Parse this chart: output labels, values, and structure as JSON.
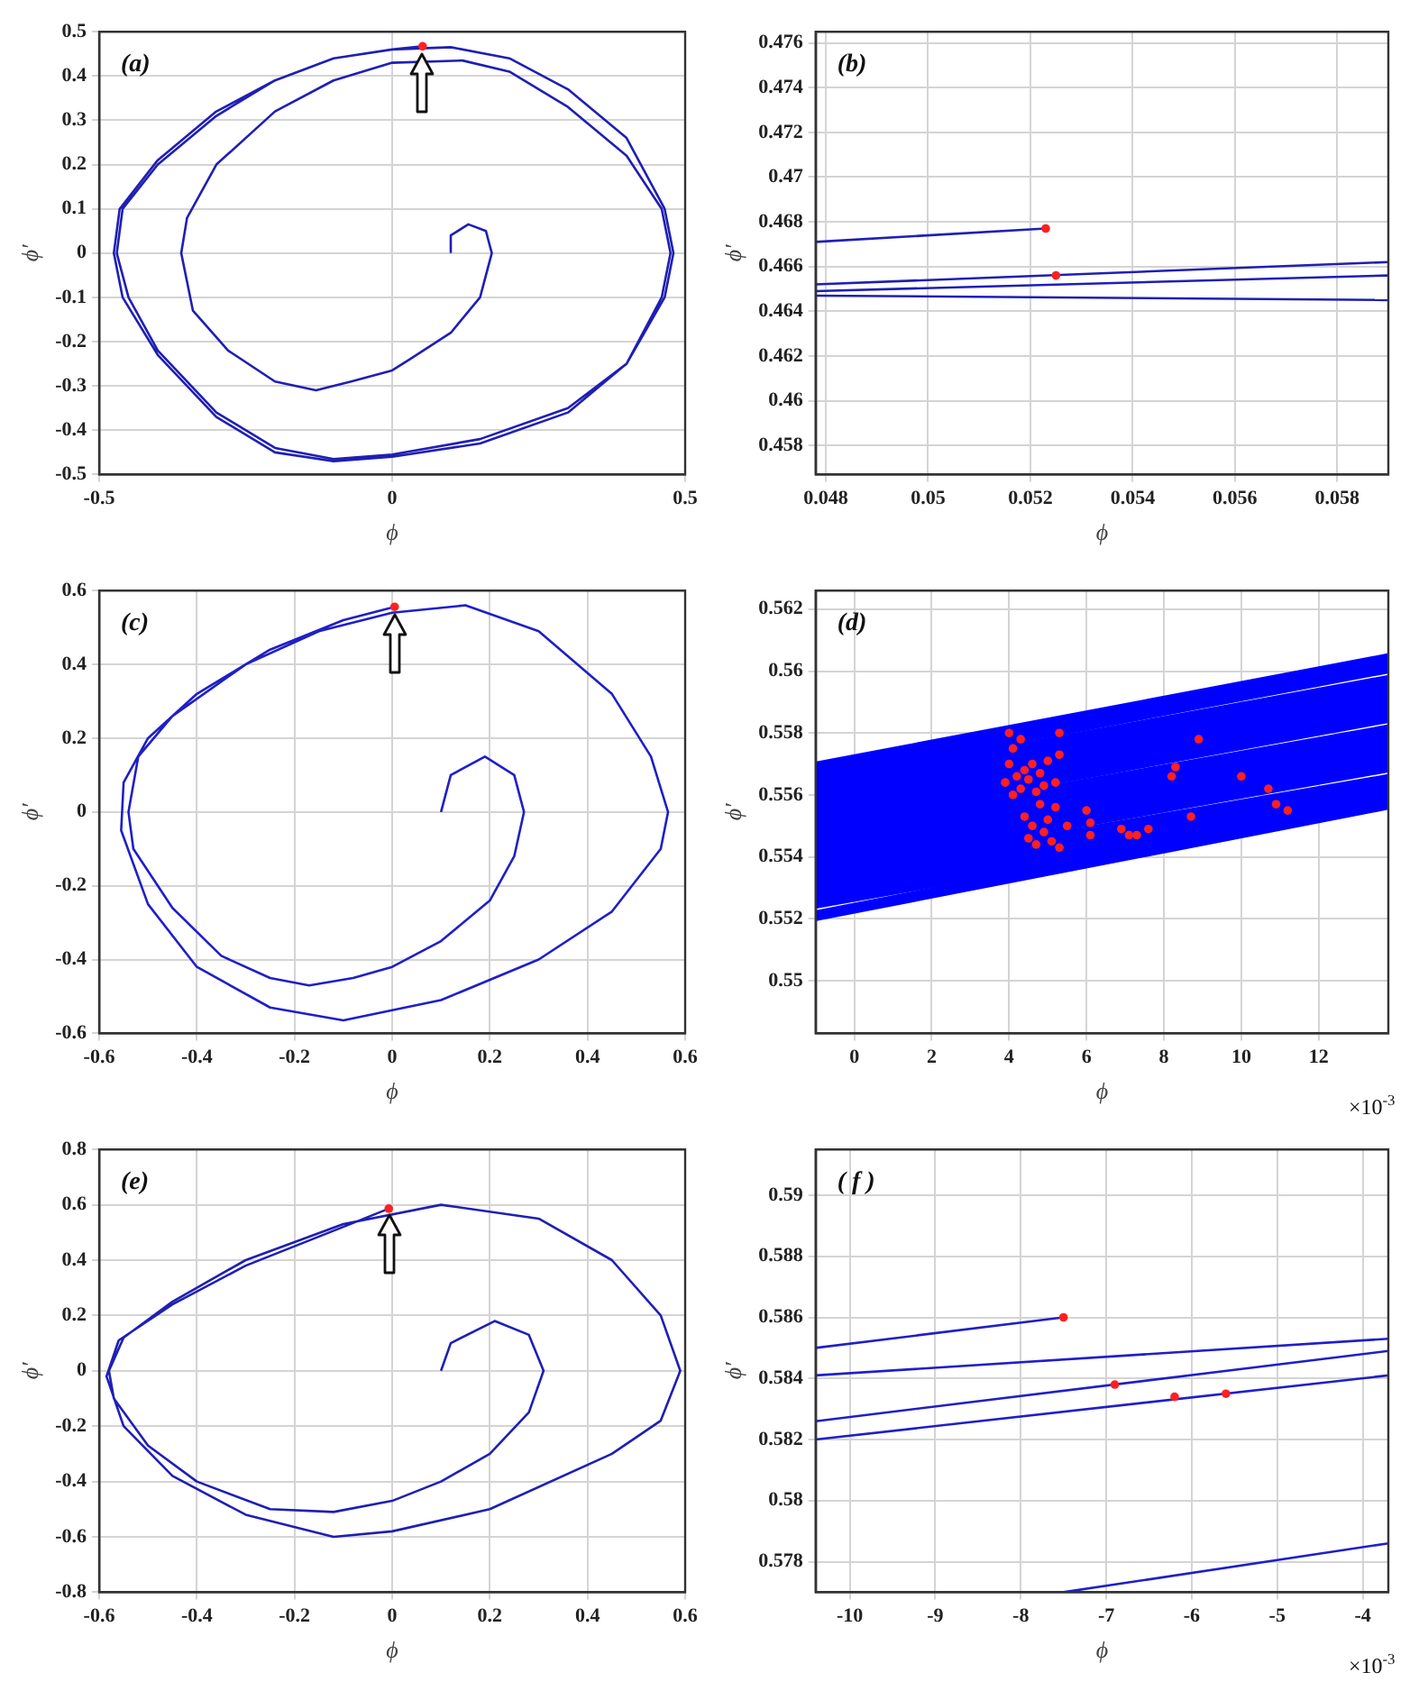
{
  "chart_data": [
    {
      "type": "line",
      "xlabel": "ϕ",
      "ylabel": "ϕ′",
      "annotations": [
        "(a)"
      ],
      "xlim": [
        -0.5,
        0.5
      ],
      "xticks": [
        -0.5,
        0,
        0.5
      ],
      "ylim": [
        -0.5,
        0.5
      ],
      "yticks": [
        -0.5,
        -0.4,
        -0.3,
        -0.2,
        -0.1,
        0,
        0.1,
        0.2,
        0.3,
        0.4,
        0.5
      ],
      "grid": true,
      "series": [
        {
          "type": "line",
          "color": "#1f1fb4",
          "x": [
            0.1,
            0.1,
            0.13,
            0.16,
            0.17,
            0.15,
            0.1,
            0.03,
            0,
            -0.07,
            -0.13,
            -0.2,
            -0.28,
            -0.34,
            -0.36,
            -0.35,
            -0.3,
            -0.2,
            -0.1,
            0,
            0.12,
            0.2,
            0.3,
            0.4,
            0.46,
            0.475,
            0.46,
            0.4,
            0.3,
            0.15,
            0,
            -0.1,
            -0.2,
            -0.3,
            -0.4,
            -0.45,
            -0.47,
            -0.46,
            -0.4,
            -0.3,
            -0.2,
            -0.1,
            0,
            0.1,
            0.2,
            0.3,
            0.4,
            0.465,
            0.48,
            0.465,
            0.4,
            0.3,
            0.15,
            0,
            -0.1,
            -0.2,
            -0.3,
            -0.4,
            -0.46,
            -0.475,
            -0.465,
            -0.4,
            -0.3,
            -0.2,
            -0.1,
            0,
            0.052
          ],
          "values": [
            0,
            0.04,
            0.065,
            0.05,
            0,
            -0.1,
            -0.18,
            -0.24,
            -0.265,
            -0.29,
            -0.31,
            -0.29,
            -0.22,
            -0.13,
            0,
            0.08,
            0.2,
            0.32,
            0.39,
            0.43,
            0.435,
            0.41,
            0.33,
            0.22,
            0.1,
            0,
            -0.1,
            -0.25,
            -0.35,
            -0.42,
            -0.455,
            -0.465,
            -0.44,
            -0.36,
            -0.22,
            -0.1,
            0,
            0.1,
            0.2,
            0.31,
            0.39,
            0.44,
            0.46,
            0.465,
            0.44,
            0.37,
            0.26,
            0.1,
            0,
            -0.1,
            -0.25,
            -0.36,
            -0.43,
            -0.46,
            -0.47,
            -0.45,
            -0.37,
            -0.23,
            -0.1,
            0,
            0.1,
            0.21,
            0.32,
            0.39,
            0.44,
            0.46,
            0.467
          ]
        },
        {
          "type": "scatter",
          "color": "#ff2020",
          "marker": "circle",
          "x": [
            0.052
          ],
          "values": [
            0.467
          ]
        }
      ]
    },
    {
      "type": "line",
      "xlabel": "ϕ",
      "ylabel": "ϕ′",
      "annotations": [
        "(b)"
      ],
      "xlim": [
        0.0478,
        0.059
      ],
      "xticks": [
        0.048,
        0.05,
        0.052,
        0.054,
        0.056,
        0.058
      ],
      "ylim": [
        0.4567,
        0.4765
      ],
      "yticks": [
        0.458,
        0.46,
        0.462,
        0.464,
        0.466,
        0.468,
        0.47,
        0.472,
        0.474,
        0.476
      ],
      "grid": true,
      "series": [
        {
          "type": "line",
          "color": "#1f1fb4",
          "x": [
            0.0478,
            0.0523
          ],
          "values": [
            0.4671,
            0.4677
          ]
        },
        {
          "type": "line",
          "color": "#1f1fb4",
          "x": [
            0.0478,
            0.059
          ],
          "values": [
            0.4652,
            0.4662
          ]
        },
        {
          "type": "line",
          "color": "#1f1fb4",
          "x": [
            0.0478,
            0.059
          ],
          "values": [
            0.4649,
            0.4656
          ]
        },
        {
          "type": "line",
          "color": "#1f1fb4",
          "x": [
            0.0478,
            0.059
          ],
          "values": [
            0.4647,
            0.4645
          ]
        },
        {
          "type": "scatter",
          "color": "#ff2020",
          "marker": "circle",
          "x": [
            0.0523,
            0.0525
          ],
          "values": [
            0.4677,
            0.4656
          ]
        }
      ]
    },
    {
      "type": "line",
      "xlabel": "ϕ",
      "ylabel": "ϕ′",
      "annotations": [
        "(c)"
      ],
      "xlim": [
        -0.6,
        0.6
      ],
      "xticks": [
        -0.6,
        -0.4,
        -0.2,
        0,
        0.2,
        0.4,
        0.6
      ],
      "ylim": [
        -0.6,
        0.6
      ],
      "yticks": [
        -0.6,
        -0.4,
        -0.2,
        0,
        0.2,
        0.4,
        0.6
      ],
      "grid": true,
      "series": [
        {
          "type": "line",
          "color": "#1f1fc8",
          "x": [
            0.1,
            0.12,
            0.19,
            0.25,
            0.27,
            0.25,
            0.2,
            0.1,
            0,
            -0.08,
            -0.17,
            -0.25,
            -0.35,
            -0.45,
            -0.53,
            -0.54,
            -0.52,
            -0.45,
            -0.3,
            -0.15,
            0,
            0.15,
            0.3,
            0.45,
            0.53,
            0.565,
            0.55,
            0.45,
            0.3,
            0.1,
            -0.1,
            -0.25,
            -0.4,
            -0.5,
            -0.555,
            -0.55,
            -0.5,
            -0.4,
            -0.25,
            -0.1,
            0.005
          ],
          "values": [
            0,
            0.1,
            0.15,
            0.1,
            0,
            -0.12,
            -0.24,
            -0.35,
            -0.42,
            -0.45,
            -0.47,
            -0.45,
            -0.39,
            -0.26,
            -0.1,
            0,
            0.15,
            0.26,
            0.4,
            0.49,
            0.54,
            0.56,
            0.49,
            0.32,
            0.15,
            0,
            -0.1,
            -0.27,
            -0.4,
            -0.51,
            -0.565,
            -0.53,
            -0.42,
            -0.25,
            -0.05,
            0.08,
            0.2,
            0.32,
            0.44,
            0.52,
            0.556
          ]
        },
        {
          "type": "scatter",
          "color": "#ff2020",
          "marker": "circle",
          "x": [
            0.005
          ],
          "values": [
            0.556
          ]
        }
      ]
    },
    {
      "type": "line",
      "xlabel": "ϕ",
      "ylabel": "ϕ′",
      "annotations": [
        "(d)",
        "×10$^{-3}$"
      ],
      "xlim": [
        -1,
        13.8
      ],
      "xticks": [
        0,
        2,
        4,
        6,
        8,
        10,
        12
      ],
      "ylim": [
        0.5483,
        0.5626
      ],
      "yticks": [
        0.55,
        0.552,
        0.554,
        0.556,
        0.558,
        0.56,
        0.562
      ],
      "grid": true,
      "series": [
        {
          "type": "line",
          "color": "#0000ff",
          "x": [
            -1,
            13.8
          ],
          "values": [
            0.5527,
            0.5559
          ]
        },
        {
          "type": "line",
          "color": "#0000ff",
          "x": [
            -1,
            13.8
          ],
          "values": [
            0.553,
            0.5562
          ]
        },
        {
          "type": "line",
          "color": "#0000ff",
          "x": [
            -1,
            13.8
          ],
          "values": [
            0.5533,
            0.5565
          ]
        },
        {
          "type": "line",
          "color": "#0000ff",
          "x": [
            -1,
            13.8
          ],
          "values": [
            0.5536,
            0.5569
          ]
        },
        {
          "type": "line",
          "color": "#0000ff",
          "x": [
            -1,
            13.8
          ],
          "values": [
            0.5539,
            0.5572
          ]
        },
        {
          "type": "line",
          "color": "#0000ff",
          "x": [
            -1,
            13.8
          ],
          "values": [
            0.5542,
            0.5575
          ]
        },
        {
          "type": "line",
          "color": "#0000ff",
          "x": [
            -1,
            13.8
          ],
          "values": [
            0.5545,
            0.5578
          ]
        },
        {
          "type": "line",
          "color": "#0000ff",
          "x": [
            -1,
            13.8
          ],
          "values": [
            0.5548,
            0.5581
          ]
        },
        {
          "type": "line",
          "color": "#0000ff",
          "x": [
            -1,
            13.8
          ],
          "values": [
            0.5551,
            0.5585
          ]
        },
        {
          "type": "line",
          "color": "#0000ff",
          "x": [
            -1,
            13.8
          ],
          "values": [
            0.5554,
            0.5588
          ]
        },
        {
          "type": "line",
          "color": "#0000ff",
          "x": [
            -1,
            13.8
          ],
          "values": [
            0.5557,
            0.5591
          ]
        },
        {
          "type": "line",
          "color": "#0000ff",
          "x": [
            -1,
            13.8
          ],
          "values": [
            0.556,
            0.5594
          ]
        },
        {
          "type": "line",
          "color": "#0000ff",
          "x": [
            -1,
            13.8
          ],
          "values": [
            0.5563,
            0.5597
          ]
        },
        {
          "type": "line",
          "color": "#0000ff",
          "x": [
            -1,
            13.8
          ],
          "values": [
            0.5566,
            0.5601
          ]
        },
        {
          "type": "line",
          "color": "#0000ff",
          "x": [
            -1,
            13.8
          ],
          "values": [
            0.5569,
            0.5604
          ]
        },
        {
          "type": "line",
          "color": "#0000ff",
          "x": [
            -1,
            13.8
          ],
          "values": [
            0.5525,
            0.5558
          ]
        },
        {
          "type": "line",
          "color": "#0000ff",
          "x": [
            -1,
            13.8
          ],
          "values": [
            0.5521,
            0.5557
          ]
        },
        {
          "type": "scatter",
          "color": "#ff2020",
          "marker": "circle",
          "x": [
            4,
            4.1,
            4.3,
            4,
            4.2,
            3.9,
            4.4,
            4.1,
            4.3,
            4.5,
            4.6,
            4.8,
            5,
            4.7,
            4.9,
            5.2,
            4.4,
            4.6,
            4.8,
            5,
            5.2,
            4.5,
            4.7,
            4.9,
            5.1,
            5.3,
            5.5,
            5.3,
            5.3,
            6,
            6.1,
            6.1,
            6.9,
            7.1,
            7.3,
            7.6,
            8.2,
            8.3,
            8.7,
            8.9,
            10,
            10.7,
            10.9,
            11.2
          ],
          "values": [
            0.558,
            0.5575,
            0.5578,
            0.557,
            0.5566,
            0.5564,
            0.5568,
            0.556,
            0.5562,
            0.5565,
            0.557,
            0.5567,
            0.5571,
            0.5561,
            0.5563,
            0.5564,
            0.5553,
            0.555,
            0.5557,
            0.5552,
            0.5556,
            0.5546,
            0.5544,
            0.5548,
            0.5545,
            0.5543,
            0.555,
            0.558,
            0.5573,
            0.5555,
            0.5551,
            0.5547,
            0.5549,
            0.5547,
            0.5547,
            0.5549,
            0.5566,
            0.5569,
            0.5553,
            0.5578,
            0.5566,
            0.5562,
            0.5557,
            0.5555
          ]
        }
      ]
    },
    {
      "type": "line",
      "xlabel": "ϕ",
      "ylabel": "ϕ′",
      "annotations": [
        "(e)"
      ],
      "xlim": [
        -0.6,
        0.6
      ],
      "xticks": [
        -0.6,
        -0.4,
        -0.2,
        0,
        0.2,
        0.4,
        0.6
      ],
      "ylim": [
        -0.8,
        0.8
      ],
      "yticks": [
        -0.8,
        -0.6,
        -0.4,
        -0.2,
        0,
        0.2,
        0.4,
        0.6,
        0.8
      ],
      "grid": true,
      "series": [
        {
          "type": "line",
          "color": "#1f1fb4",
          "x": [
            0.1,
            0.12,
            0.21,
            0.28,
            0.31,
            0.28,
            0.2,
            0.1,
            0,
            -0.12,
            -0.25,
            -0.4,
            -0.5,
            -0.57,
            -0.58,
            -0.55,
            -0.45,
            -0.3,
            -0.1,
            0.1,
            0.3,
            0.45,
            0.55,
            0.59,
            0.55,
            0.45,
            0.2,
            0,
            -0.12,
            -0.3,
            -0.45,
            -0.55,
            -0.585,
            -0.56,
            -0.45,
            -0.3,
            -0.1,
            -0.007
          ],
          "values": [
            0,
            0.1,
            0.18,
            0.13,
            0,
            -0.15,
            -0.3,
            -0.4,
            -0.47,
            -0.51,
            -0.5,
            -0.4,
            -0.27,
            -0.1,
            0,
            0.12,
            0.25,
            0.4,
            0.53,
            0.6,
            0.55,
            0.4,
            0.2,
            0,
            -0.18,
            -0.3,
            -0.5,
            -0.58,
            -0.6,
            -0.52,
            -0.38,
            -0.2,
            -0.02,
            0.11,
            0.24,
            0.38,
            0.52,
            0.586
          ]
        },
        {
          "type": "scatter",
          "color": "#ff2020",
          "marker": "circle",
          "x": [
            -0.007
          ],
          "values": [
            0.586
          ]
        }
      ]
    },
    {
      "type": "line",
      "xlabel": "ϕ",
      "ylabel": "ϕ′",
      "annotations": [
        "( f )",
        "×10$^{-3}$"
      ],
      "xlim": [
        -10.4,
        -3.7
      ],
      "xticks": [
        -10,
        -9,
        -8,
        -7,
        -6,
        -5,
        -4
      ],
      "ylim": [
        0.577,
        0.5915
      ],
      "yticks": [
        0.578,
        0.58,
        0.582,
        0.584,
        0.586,
        0.588,
        0.59
      ],
      "grid": true,
      "series": [
        {
          "type": "line",
          "color": "#1f1fc8",
          "x": [
            -10.4,
            -7.5
          ],
          "values": [
            0.585,
            0.586
          ]
        },
        {
          "type": "line",
          "color": "#1f1fc8",
          "x": [
            -10.4,
            -3.7
          ],
          "values": [
            0.5841,
            0.5853
          ]
        },
        {
          "type": "line",
          "color": "#1f1fc8",
          "x": [
            -10.4,
            -3.7
          ],
          "values": [
            0.5826,
            0.5849
          ]
        },
        {
          "type": "line",
          "color": "#1f1fc8",
          "x": [
            -10.4,
            -3.7
          ],
          "values": [
            0.582,
            0.5841
          ]
        },
        {
          "type": "line",
          "color": "#1f1fc8",
          "x": [
            -7.5,
            -3.7
          ],
          "values": [
            0.577,
            0.5786
          ]
        },
        {
          "type": "scatter",
          "color": "#ff2020",
          "marker": "circle",
          "x": [
            -7.5,
            -6.9,
            -6.2,
            -5.6
          ],
          "values": [
            0.586,
            0.5838,
            0.5834,
            0.5835
          ]
        }
      ]
    }
  ]
}
